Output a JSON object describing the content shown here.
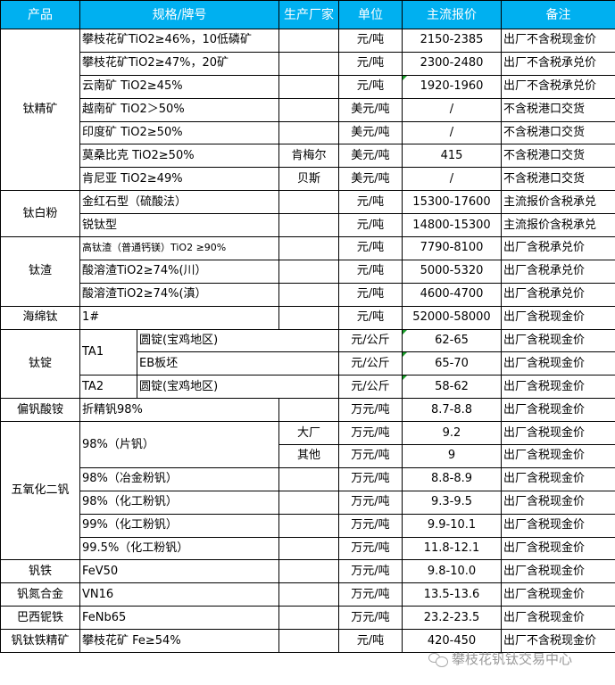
{
  "headers": [
    "产品",
    "规格/牌号",
    "生产厂家",
    "单位",
    "主流报价",
    "备注"
  ],
  "accent_color": "#00b0f0",
  "watermark": "攀枝花钒钛交易中心",
  "rows": [
    [
      {
        "t": "钛精矿",
        "rs": 7
      },
      {
        "t": "攀枝花矿TiO2≥46%，10低磷矿",
        "cs": 2,
        "l": 1
      },
      {
        "t": ""
      },
      {
        "t": "元/吨"
      },
      {
        "t": "2150-2385"
      },
      {
        "t": "出厂不含税现金价",
        "l": 1
      }
    ],
    [
      {
        "t": "攀枝花矿TiO2≥47%，20矿",
        "cs": 2,
        "l": 1
      },
      {
        "t": ""
      },
      {
        "t": "元/吨"
      },
      {
        "t": "2300-2480"
      },
      {
        "t": "出厂不含税承兑价",
        "l": 1
      }
    ],
    [
      {
        "t": "云南矿 TiO2≥45%",
        "cs": 2,
        "l": 1
      },
      {
        "t": ""
      },
      {
        "t": "元/吨"
      },
      {
        "t": "1920-1960",
        "tri": 1
      },
      {
        "t": "出厂不含税承兑价",
        "l": 1
      }
    ],
    [
      {
        "t": "越南矿 TiO2＞50%",
        "cs": 2,
        "l": 1
      },
      {
        "t": ""
      },
      {
        "t": "美元/吨"
      },
      {
        "t": "/"
      },
      {
        "t": "不含税港口交货",
        "l": 1
      }
    ],
    [
      {
        "t": "印度矿 TiO2≥50%",
        "cs": 2,
        "l": 1
      },
      {
        "t": ""
      },
      {
        "t": "美元/吨"
      },
      {
        "t": "/"
      },
      {
        "t": "不含税港口交货",
        "l": 1
      }
    ],
    [
      {
        "t": "莫桑比克 TiO2≥50%",
        "cs": 2,
        "l": 1
      },
      {
        "t": "肯梅尔"
      },
      {
        "t": "美元/吨"
      },
      {
        "t": "415"
      },
      {
        "t": "不含税港口交货",
        "l": 1
      }
    ],
    [
      {
        "t": "肯尼亚 TiO2≥49%",
        "cs": 2,
        "l": 1
      },
      {
        "t": "贝斯"
      },
      {
        "t": "美元/吨"
      },
      {
        "t": "/"
      },
      {
        "t": "不含税港口交货",
        "l": 1
      }
    ],
    [
      {
        "t": "钛白粉",
        "rs": 2
      },
      {
        "t": "金红石型（硫酸法）",
        "cs": 2,
        "l": 1
      },
      {
        "t": ""
      },
      {
        "t": "元/吨"
      },
      {
        "t": "15300-17600"
      },
      {
        "t": "主流报价含税承兑",
        "l": 1
      }
    ],
    [
      {
        "t": "锐钛型",
        "cs": 2,
        "l": 1
      },
      {
        "t": ""
      },
      {
        "t": "元/吨"
      },
      {
        "t": "14800-15300"
      },
      {
        "t": "主流报价含税承兑",
        "l": 1
      }
    ],
    [
      {
        "t": "钛渣",
        "rs": 3
      },
      {
        "t": "高钛渣（普通钙镁）TiO2 ≥90%",
        "cs": 2,
        "l": 1,
        "sm": 1
      },
      {
        "t": ""
      },
      {
        "t": "元/吨"
      },
      {
        "t": "7790-8100"
      },
      {
        "t": "出厂含税承兑价",
        "l": 1
      }
    ],
    [
      {
        "t": "酸溶渣TiO2≥74%(川）",
        "cs": 2,
        "l": 1
      },
      {
        "t": ""
      },
      {
        "t": "元/吨"
      },
      {
        "t": "5000-5320"
      },
      {
        "t": "出厂含税承兑价",
        "l": 1
      }
    ],
    [
      {
        "t": "酸溶渣TiO2≥74%(滇）",
        "cs": 2,
        "l": 1
      },
      {
        "t": ""
      },
      {
        "t": "元/吨"
      },
      {
        "t": "4600-4700"
      },
      {
        "t": "出厂含税承兑价",
        "l": 1
      }
    ],
    [
      {
        "t": "海绵钛"
      },
      {
        "t": "1#",
        "cs": 2,
        "l": 1
      },
      {
        "t": ""
      },
      {
        "t": "元/吨"
      },
      {
        "t": "52000-58000"
      },
      {
        "t": "出厂含税现金价",
        "l": 1
      }
    ],
    [
      {
        "t": "钛锭",
        "rs": 3
      },
      {
        "t": "TA1",
        "rs": 2,
        "l": 1
      },
      {
        "t": "圆锭(宝鸡地区)",
        "cs": 2,
        "l": 1
      },
      {
        "t": "元/公斤"
      },
      {
        "t": "62-65",
        "tri": 1
      },
      {
        "t": "出厂含税现金价",
        "l": 1
      }
    ],
    [
      {
        "t": "EB板坯",
        "cs": 2,
        "l": 1
      },
      {
        "t": "元/公斤"
      },
      {
        "t": "65-70",
        "tri": 1
      },
      {
        "t": "出厂含税现金价",
        "l": 1
      }
    ],
    [
      {
        "t": "TA2",
        "l": 1
      },
      {
        "t": "圆锭(宝鸡地区)",
        "cs": 2,
        "l": 1
      },
      {
        "t": "元/公斤"
      },
      {
        "t": "58-62",
        "tri": 1
      },
      {
        "t": "出厂含税现金价",
        "l": 1
      }
    ],
    [
      {
        "t": "偏钒酸铵"
      },
      {
        "t": "折精钒98%",
        "cs": 2,
        "l": 1
      },
      {
        "t": ""
      },
      {
        "t": "万元/吨"
      },
      {
        "t": "8.7-8.8"
      },
      {
        "t": "出厂含税现金价",
        "l": 1
      }
    ],
    [
      {
        "t": "五氧化二钒",
        "rs": 6
      },
      {
        "t": "98%（片钒）",
        "cs": 2,
        "rs": 2,
        "l": 1
      },
      {
        "t": "大厂"
      },
      {
        "t": "万元/吨"
      },
      {
        "t": "9.2"
      },
      {
        "t": "出厂含税现金价",
        "l": 1
      }
    ],
    [
      {
        "t": "其他"
      },
      {
        "t": "万元/吨"
      },
      {
        "t": "9"
      },
      {
        "t": "出厂含税现金价",
        "l": 1
      }
    ],
    [
      {
        "t": "98%（冶金粉钒）",
        "cs": 2,
        "l": 1
      },
      {
        "t": ""
      },
      {
        "t": "万元/吨"
      },
      {
        "t": "8.8-8.9"
      },
      {
        "t": "出厂含税现金价",
        "l": 1
      }
    ],
    [
      {
        "t": "98%（化工粉钒）",
        "cs": 2,
        "l": 1
      },
      {
        "t": ""
      },
      {
        "t": "万元/吨"
      },
      {
        "t": "9.3-9.5"
      },
      {
        "t": "出厂含税现金价",
        "l": 1
      }
    ],
    [
      {
        "t": "99%（化工粉钒）",
        "cs": 2,
        "l": 1
      },
      {
        "t": ""
      },
      {
        "t": "万元/吨"
      },
      {
        "t": "9.9-10.1"
      },
      {
        "t": "出厂含税现金价",
        "l": 1
      }
    ],
    [
      {
        "t": "99.5%（化工粉钒）",
        "cs": 2,
        "l": 1
      },
      {
        "t": ""
      },
      {
        "t": "万元/吨"
      },
      {
        "t": "11.8-12.1"
      },
      {
        "t": "出厂含税现金价",
        "l": 1
      }
    ],
    [
      {
        "t": "钒铁"
      },
      {
        "t": "FeV50",
        "cs": 2,
        "l": 1
      },
      {
        "t": ""
      },
      {
        "t": "万元/吨"
      },
      {
        "t": "9.8-10.0"
      },
      {
        "t": "出厂含税现金价",
        "l": 1
      }
    ],
    [
      {
        "t": "钒氮合金"
      },
      {
        "t": "VN16",
        "cs": 2,
        "l": 1
      },
      {
        "t": ""
      },
      {
        "t": "万元/吨"
      },
      {
        "t": "13.5-13.6"
      },
      {
        "t": "出厂含税现金价",
        "l": 1
      }
    ],
    [
      {
        "t": "巴西铌铁"
      },
      {
        "t": "FeNb65",
        "cs": 2,
        "l": 1
      },
      {
        "t": ""
      },
      {
        "t": "万元/吨"
      },
      {
        "t": "23.2-23.5"
      },
      {
        "t": "出厂含税现金价",
        "l": 1
      }
    ],
    [
      {
        "t": "钒钛铁精矿"
      },
      {
        "t": "攀枝花矿 Fe≥54%",
        "cs": 2,
        "l": 1
      },
      {
        "t": ""
      },
      {
        "t": "元/吨"
      },
      {
        "t": "420-450"
      },
      {
        "t": "出厂不含税现金价",
        "l": 1
      }
    ]
  ]
}
